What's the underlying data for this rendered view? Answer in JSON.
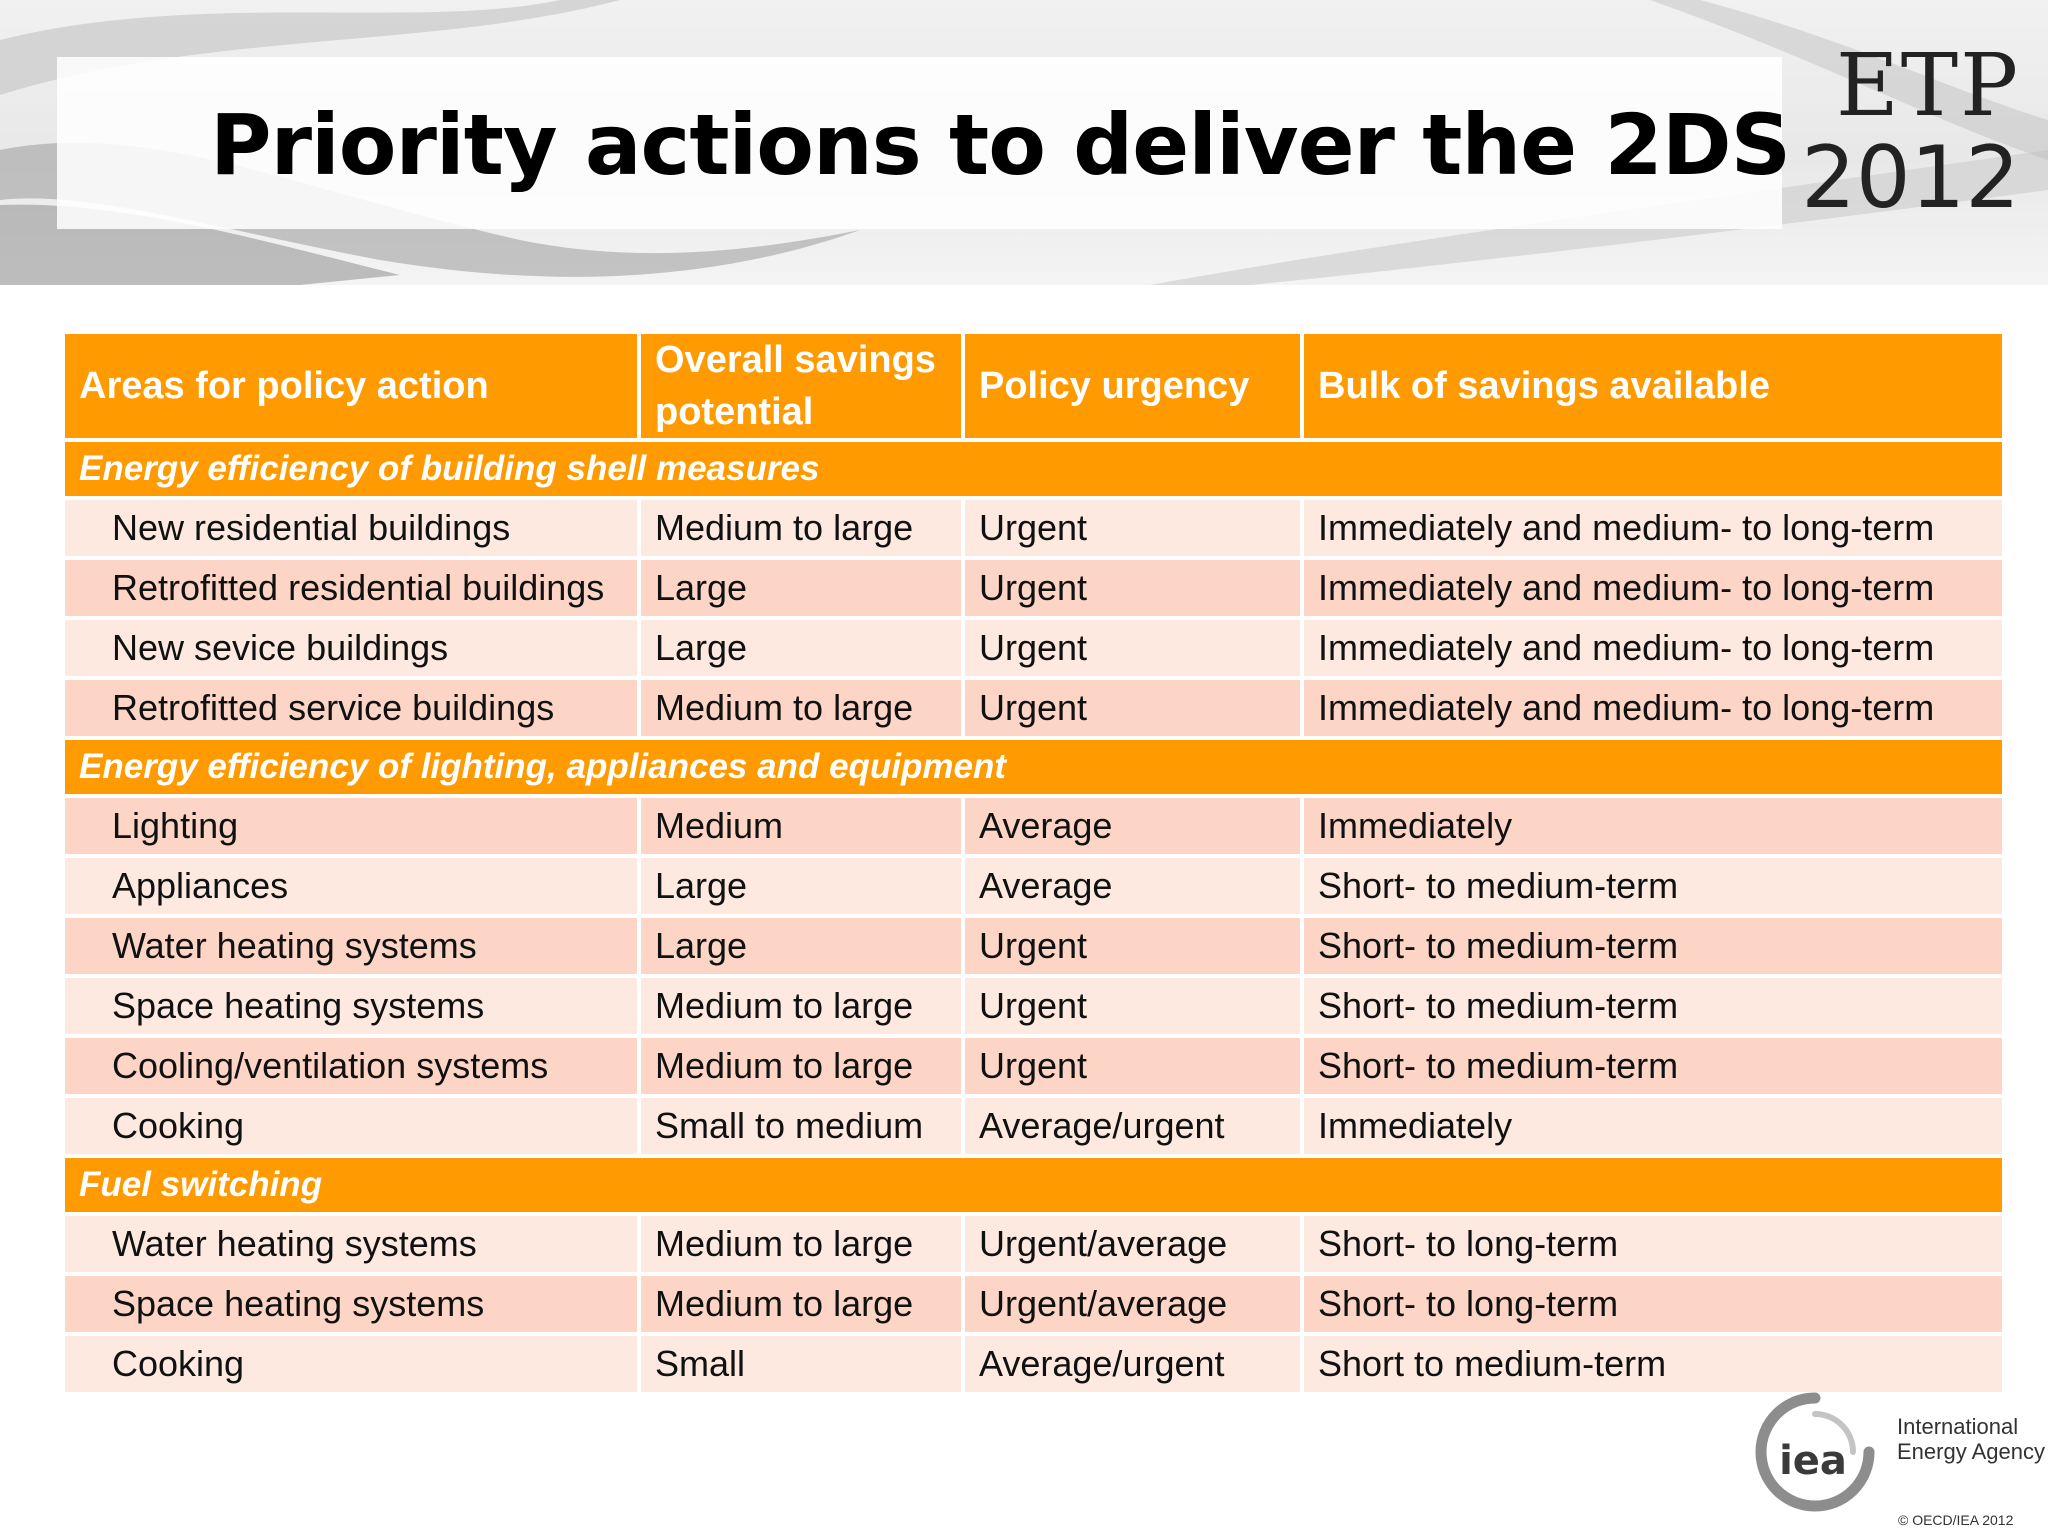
{
  "slide": {
    "title": "Priority actions to deliver the 2DS",
    "logo": {
      "line1": "ETP",
      "line2": "2012"
    }
  },
  "table": {
    "headers": [
      "Areas for policy action",
      "Overall  savings potential",
      "Policy urgency",
      "Bulk of savings available"
    ],
    "sections": [
      {
        "title": "Energy efficiency of building shell measures",
        "rows": [
          [
            "New residential buildings",
            "Medium to large",
            "Urgent",
            "Immediately and medium- to long-term"
          ],
          [
            "Retrofitted residential buildings",
            "Large",
            "Urgent",
            "Immediately and medium- to long-term"
          ],
          [
            "New sevice buildings",
            "Large",
            "Urgent",
            "Immediately and medium- to long-term"
          ],
          [
            "Retrofitted service buildings",
            "Medium to large",
            "Urgent",
            "Immediately and medium- to long-term"
          ]
        ]
      },
      {
        "title": "Energy efficiency of lighting, appliances and equipment",
        "rows": [
          [
            "Lighting",
            "Medium",
            "Average",
            "Immediately"
          ],
          [
            "Appliances",
            "Large",
            "Average",
            "Short- to medium-term"
          ],
          [
            "Water heating systems",
            "Large",
            "Urgent",
            "Short- to medium-term"
          ],
          [
            "Space heating systems",
            "Medium to large",
            "Urgent",
            "Short- to medium-term"
          ],
          [
            "Cooling/ventilation systems",
            "Medium to large",
            "Urgent",
            "Short- to medium-term"
          ],
          [
            "Cooking",
            "Small to medium",
            "Average/urgent",
            "Immediately"
          ]
        ]
      },
      {
        "title": "Fuel switching",
        "rows": [
          [
            "Water heating systems",
            "Medium to large",
            "Urgent/average",
            "Short- to long-term"
          ],
          [
            "Space heating systems",
            "Medium to large",
            "Urgent/average",
            "Short- to long-term"
          ],
          [
            "Cooking",
            "Small",
            "Average/urgent",
            "Short to medium-term"
          ]
        ]
      }
    ]
  },
  "footer": {
    "iea_mark": "iea",
    "iea_name_line1": "International",
    "iea_name_line2": "Energy Agency",
    "copyright": "© OECD/IEA 2012"
  },
  "colors": {
    "accent_orange": "#ff9a00",
    "row_light": "#fde9df",
    "row_dark": "#fcd5c6"
  }
}
